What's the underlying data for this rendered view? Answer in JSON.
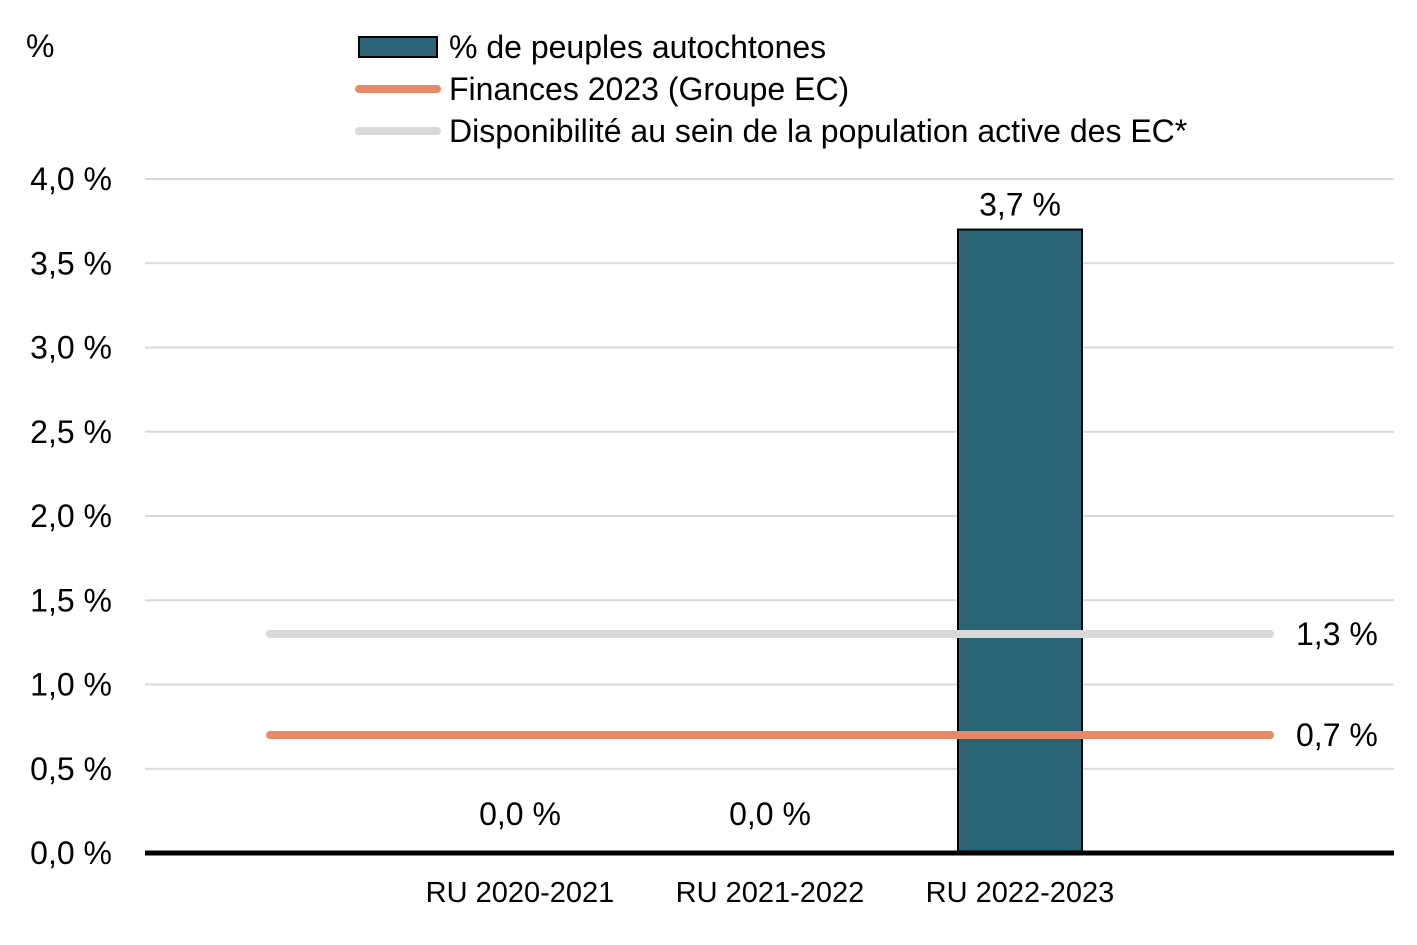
{
  "chart_data": {
    "type": "bar",
    "unit_label": "%",
    "categories": [
      "RU 2020-2021",
      "RU 2021-2022",
      "RU 2022-2023"
    ],
    "series": [
      {
        "name": "% de peuples autochtones",
        "kind": "bar",
        "values": [
          0.0,
          0.0,
          3.7
        ],
        "data_labels": [
          "0,0 %",
          "0,0 %",
          "3,7 %"
        ],
        "color": "#2a6577"
      },
      {
        "name": "Finances 2023 (Groupe EC)",
        "kind": "line",
        "value": 0.7,
        "end_label": "0,7 %",
        "color": "#e8896a"
      },
      {
        "name": "Disponibilité au sein de la population active des EC*",
        "kind": "line",
        "value": 1.3,
        "end_label": "1,3 %",
        "color": "#d9d9d9"
      }
    ],
    "ylim": [
      0,
      4.0
    ],
    "yticks": [
      0,
      0.5,
      1.0,
      1.5,
      2.0,
      2.5,
      3.0,
      3.5,
      4.0
    ],
    "ytick_labels": [
      "0,0 %",
      "0,5 %",
      "1,0 %",
      "1,5 %",
      "2,0 %",
      "2,5 %",
      "3,0 %",
      "3,5 %",
      "4,0 %"
    ],
    "grid": true,
    "legend_position": "top"
  }
}
